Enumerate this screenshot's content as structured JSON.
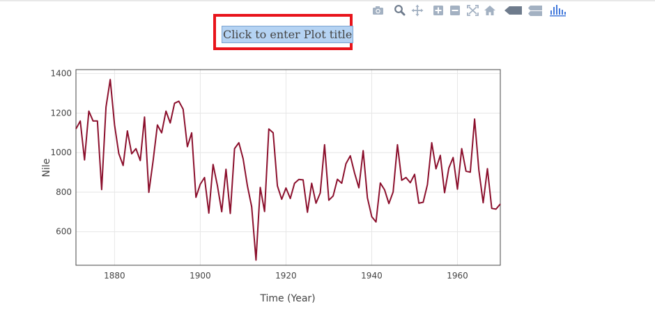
{
  "toolbar": {
    "buttons": [
      {
        "icon": "camera-icon",
        "title": "Download plot as a png"
      },
      {
        "icon": "zoom-icon",
        "title": "Zoom"
      },
      {
        "icon": "pan-icon",
        "title": "Pan"
      },
      {
        "icon": "zoom-in-icon",
        "title": "Zoom in"
      },
      {
        "icon": "zoom-out-icon",
        "title": "Zoom out"
      },
      {
        "icon": "autoscale-icon",
        "title": "Autoscale"
      },
      {
        "icon": "home-icon",
        "title": "Reset axes"
      },
      {
        "icon": "hover-closest-icon",
        "title": "Show closest data on hover"
      },
      {
        "icon": "hover-compare-icon",
        "title": "Compare data on hover"
      },
      {
        "icon": "plotly-logo-icon",
        "title": "Produced with Plotly"
      }
    ],
    "icon_color": "#a3b1c2",
    "dark_icon_color": "#6e7b8c",
    "logo_color": "#447adb"
  },
  "chart_data": {
    "type": "line",
    "title": "Click to enter Plot title",
    "xlabel": "Time (Year)",
    "ylabel": "Nile",
    "xlim": [
      1871,
      1970
    ],
    "ylim": [
      430,
      1420
    ],
    "xticks": [
      1880,
      1900,
      1920,
      1940,
      1960
    ],
    "yticks": [
      600,
      800,
      1000,
      1200,
      1400
    ],
    "grid": true,
    "line_color": "#8b0f2c",
    "series": [
      {
        "x": [
          1871,
          1872,
          1873,
          1874,
          1875,
          1876,
          1877,
          1878,
          1879,
          1880,
          1881,
          1882,
          1883,
          1884,
          1885,
          1886,
          1887,
          1888,
          1889,
          1890,
          1891,
          1892,
          1893,
          1894,
          1895,
          1896,
          1897,
          1898,
          1899,
          1900,
          1901,
          1902,
          1903,
          1904,
          1905,
          1906,
          1907,
          1908,
          1909,
          1910,
          1911,
          1912,
          1913,
          1914,
          1915,
          1916,
          1917,
          1918,
          1919,
          1920,
          1921,
          1922,
          1923,
          1924,
          1925,
          1926,
          1927,
          1928,
          1929,
          1930,
          1931,
          1932,
          1933,
          1934,
          1935,
          1936,
          1937,
          1938,
          1939,
          1940,
          1941,
          1942,
          1943,
          1944,
          1945,
          1946,
          1947,
          1948,
          1949,
          1950,
          1951,
          1952,
          1953,
          1954,
          1955,
          1956,
          1957,
          1958,
          1959,
          1960,
          1961,
          1962,
          1963,
          1964,
          1965,
          1966,
          1967,
          1968,
          1969,
          1970
        ],
        "y": [
          1120,
          1160,
          963,
          1210,
          1160,
          1160,
          813,
          1230,
          1370,
          1140,
          995,
          935,
          1110,
          994,
          1020,
          960,
          1180,
          799,
          958,
          1140,
          1100,
          1210,
          1150,
          1250,
          1260,
          1220,
          1030,
          1100,
          774,
          840,
          874,
          694,
          940,
          833,
          701,
          916,
          692,
          1020,
          1050,
          969,
          831,
          726,
          456,
          824,
          702,
          1120,
          1100,
          832,
          764,
          821,
          768,
          845,
          864,
          862,
          698,
          845,
          744,
          796,
          1040,
          759,
          781,
          865,
          845,
          944,
          984,
          897,
          822,
          1010,
          771,
          676,
          649,
          846,
          812,
          742,
          801,
          1040,
          860,
          874,
          848,
          890,
          744,
          749,
          838,
          1050,
          918,
          986,
          797,
          923,
          975,
          815,
          1020,
          906,
          901,
          1170,
          912,
          746,
          919,
          718,
          714,
          740
        ]
      }
    ]
  }
}
